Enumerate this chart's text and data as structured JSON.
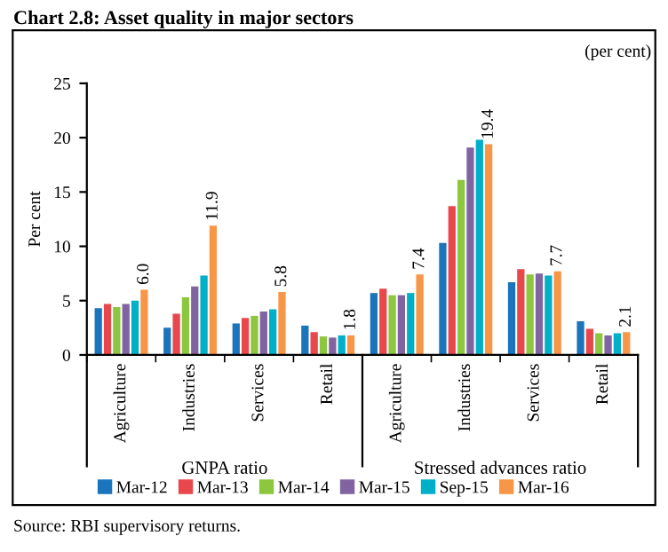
{
  "chart_data": {
    "type": "bar",
    "title": "Chart 2.8: Asset quality in major sectors",
    "subtitle": "(per cent)",
    "ylabel": "Per cent",
    "categories": [
      "Agriculture",
      "Industries",
      "Services",
      "Retail",
      "Agriculture",
      "Industries",
      "Services",
      "Retail"
    ],
    "series": [
      {
        "name": "Mar-12",
        "color": "#1b75bc",
        "values": [
          4.3,
          2.5,
          2.9,
          2.7,
          5.7,
          10.3,
          6.7,
          3.1
        ]
      },
      {
        "name": "Mar-13",
        "color": "#e8474c",
        "values": [
          4.7,
          3.8,
          3.4,
          2.1,
          6.1,
          13.7,
          7.9,
          2.4
        ]
      },
      {
        "name": "Mar-14",
        "color": "#8dc63f",
        "values": [
          4.4,
          5.3,
          3.6,
          1.7,
          5.5,
          16.1,
          7.4,
          2.0
        ]
      },
      {
        "name": "Mar-15",
        "color": "#8064a2",
        "values": [
          4.7,
          6.3,
          4.0,
          1.6,
          5.5,
          19.1,
          7.5,
          1.8
        ]
      },
      {
        "name": "Sep-15",
        "color": "#00b0c8",
        "values": [
          5.0,
          7.3,
          4.2,
          1.8,
          5.7,
          19.8,
          7.3,
          2.0
        ]
      },
      {
        "name": "Mar-16",
        "color": "#f79646",
        "values": [
          6.0,
          11.9,
          5.8,
          1.8,
          7.4,
          19.4,
          7.7,
          2.1
        ],
        "value_labels": [
          "6.0",
          "11.9",
          "5.8",
          "1.8",
          "7.4",
          "19.4",
          "7.7",
          "2.1"
        ]
      }
    ],
    "ylim": [
      0,
      25
    ],
    "yticks": [
      0,
      5,
      10,
      15,
      20,
      25
    ],
    "grid": false,
    "legend": "bottom",
    "annotations": [
      "GNPA ratio",
      "Stressed advances ratio",
      "Source: RBI supervisory returns."
    ]
  }
}
